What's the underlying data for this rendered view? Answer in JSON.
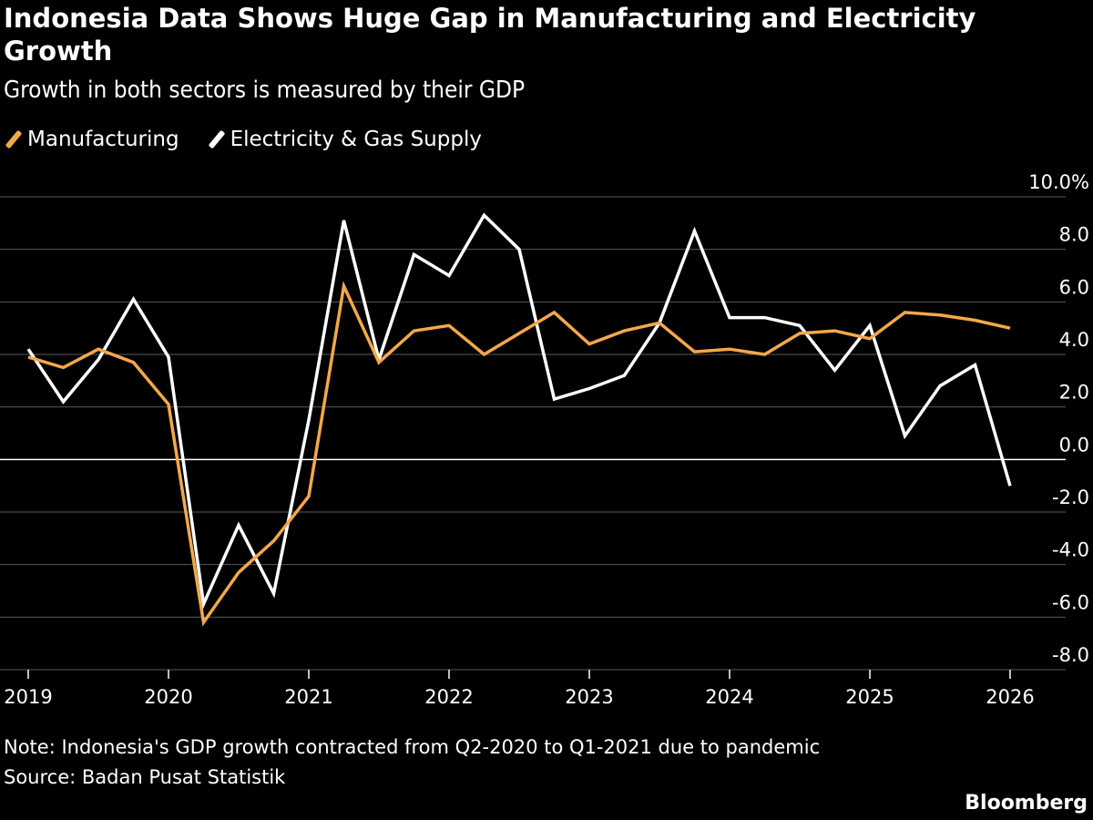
{
  "title": "Indonesia Data Shows Huge Gap in Manufacturing and Electricity Growth",
  "subtitle": "Growth in both sectors is measured by their GDP",
  "legend": [
    {
      "label": "Manufacturing",
      "color": "#f4a84a"
    },
    {
      "label": "Electricity & Gas Supply",
      "color": "#ffffff"
    }
  ],
  "note": "Note: Indonesia's GDP growth contracted from Q2-2020 to Q1-2021 due to pandemic",
  "source": "Source: Badan Pusat Statistik",
  "brand": "Bloomberg",
  "chart_data": {
    "type": "line",
    "title": "Indonesia Data Shows Huge Gap in Manufacturing and Electricity Growth",
    "subtitle": "Growth in both sectors is measured by their GDP",
    "xlabel": "",
    "ylabel": "",
    "x_ticks": [
      "2019",
      "2020",
      "2021",
      "2022",
      "2023",
      "2024",
      "2025",
      "2026"
    ],
    "x_range": [
      2019,
      2026
    ],
    "y_ticks": [
      "10.0%",
      "8.0",
      "6.0",
      "4.0",
      "2.0",
      "0.0",
      "-2.0",
      "-4.0",
      "-6.0",
      "-8.0"
    ],
    "ylim": [
      -8,
      10
    ],
    "y_axis_side": "right",
    "grid": true,
    "legend_position": "top-left",
    "x": [
      2019.0,
      2019.25,
      2019.5,
      2019.75,
      2020.0,
      2020.25,
      2020.5,
      2020.75,
      2021.0,
      2021.25,
      2021.5,
      2021.75,
      2022.0,
      2022.25,
      2022.5,
      2022.75,
      2023.0,
      2023.25,
      2023.5,
      2023.75,
      2024.0,
      2024.25,
      2024.5,
      2024.75,
      2025.0,
      2025.25,
      2025.5,
      2025.75,
      2026.0
    ],
    "series": [
      {
        "name": "Manufacturing",
        "color": "#f4a84a",
        "values": [
          3.9,
          3.5,
          4.2,
          3.7,
          2.1,
          -6.2,
          -4.3,
          -3.1,
          -1.4,
          6.6,
          3.7,
          4.9,
          5.1,
          4.0,
          4.8,
          5.6,
          4.4,
          4.9,
          5.2,
          4.1,
          4.2,
          4.0,
          4.8,
          4.9,
          4.6,
          5.6,
          5.5,
          5.3,
          5.0
        ]
      },
      {
        "name": "Electricity & Gas Supply",
        "color": "#ffffff",
        "values": [
          4.2,
          2.2,
          3.8,
          6.1,
          3.9,
          -5.5,
          -2.5,
          -5.1,
          1.5,
          9.1,
          3.8,
          7.8,
          7.0,
          9.3,
          8.0,
          2.3,
          2.7,
          3.2,
          5.2,
          8.7,
          5.4,
          5.4,
          5.1,
          3.4,
          5.1,
          0.9,
          2.8,
          3.6,
          -1.0
        ]
      }
    ]
  }
}
